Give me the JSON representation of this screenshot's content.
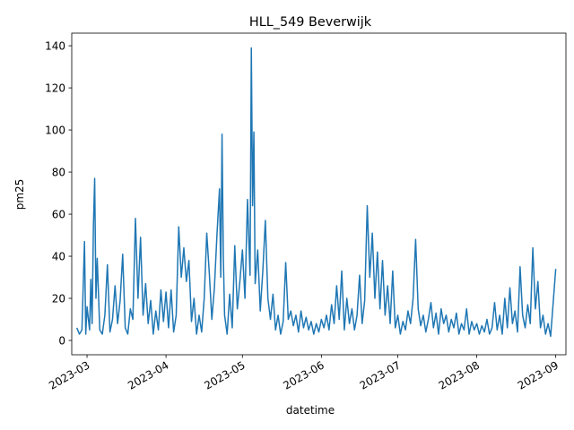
{
  "chart_data": {
    "type": "line",
    "title": "HLL_549 Beverwijk",
    "xlabel": "datetime",
    "ylabel": "pm25",
    "xlim": [
      "2023-02-23",
      "2023-09-05"
    ],
    "ylim": [
      -6.8,
      146
    ],
    "grid": false,
    "x_ticks": [
      "2023-03",
      "2023-04",
      "2023-05",
      "2023-06",
      "2023-07",
      "2023-08",
      "2023-09"
    ],
    "y_ticks": [
      0,
      20,
      40,
      60,
      80,
      100,
      120,
      140
    ],
    "series": [
      {
        "color": "#1f77b4",
        "points": [
          [
            "2023-02-25",
            6
          ],
          [
            "2023-02-26",
            3
          ],
          [
            "2023-02-27",
            5
          ],
          [
            "2023-02-28",
            47
          ],
          [
            "2023-02-28T12",
            3
          ],
          [
            "2023-03-01",
            16
          ],
          [
            "2023-03-02",
            5
          ],
          [
            "2023-03-02T12",
            29
          ],
          [
            "2023-03-03",
            8
          ],
          [
            "2023-03-03T12",
            54
          ],
          [
            "2023-03-04",
            77
          ],
          [
            "2023-03-04T12",
            20
          ],
          [
            "2023-03-05",
            39
          ],
          [
            "2023-03-06",
            5
          ],
          [
            "2023-03-07",
            3
          ],
          [
            "2023-03-08",
            12
          ],
          [
            "2023-03-09",
            36
          ],
          [
            "2023-03-10",
            4
          ],
          [
            "2023-03-11",
            10
          ],
          [
            "2023-03-12",
            26
          ],
          [
            "2023-03-13",
            8
          ],
          [
            "2023-03-14",
            19
          ],
          [
            "2023-03-15",
            41
          ],
          [
            "2023-03-16",
            6
          ],
          [
            "2023-03-17",
            3
          ],
          [
            "2023-03-18",
            15
          ],
          [
            "2023-03-19",
            10
          ],
          [
            "2023-03-20",
            58
          ],
          [
            "2023-03-21",
            20
          ],
          [
            "2023-03-22",
            49
          ],
          [
            "2023-03-23",
            12
          ],
          [
            "2023-03-24",
            27
          ],
          [
            "2023-03-25",
            8
          ],
          [
            "2023-03-26",
            19
          ],
          [
            "2023-03-27",
            3
          ],
          [
            "2023-03-28",
            14
          ],
          [
            "2023-03-29",
            5
          ],
          [
            "2023-03-30",
            24
          ],
          [
            "2023-03-31",
            9
          ],
          [
            "2023-04-01",
            23
          ],
          [
            "2023-04-02",
            6
          ],
          [
            "2023-04-03",
            24
          ],
          [
            "2023-04-04",
            4
          ],
          [
            "2023-04-05",
            12
          ],
          [
            "2023-04-06",
            54
          ],
          [
            "2023-04-07",
            30
          ],
          [
            "2023-04-08",
            44
          ],
          [
            "2023-04-09",
            28
          ],
          [
            "2023-04-10",
            38
          ],
          [
            "2023-04-11",
            9
          ],
          [
            "2023-04-12",
            20
          ],
          [
            "2023-04-13",
            3
          ],
          [
            "2023-04-14",
            12
          ],
          [
            "2023-04-15",
            4
          ],
          [
            "2023-04-16",
            20
          ],
          [
            "2023-04-17",
            51
          ],
          [
            "2023-04-18",
            32
          ],
          [
            "2023-04-19",
            10
          ],
          [
            "2023-04-20",
            25
          ],
          [
            "2023-04-21",
            50
          ],
          [
            "2023-04-22",
            72
          ],
          [
            "2023-04-22T12",
            30
          ],
          [
            "2023-04-23",
            98
          ],
          [
            "2023-04-23T12",
            40
          ],
          [
            "2023-04-24",
            12
          ],
          [
            "2023-04-25",
            3
          ],
          [
            "2023-04-26",
            22
          ],
          [
            "2023-04-27",
            6
          ],
          [
            "2023-04-28",
            45
          ],
          [
            "2023-04-29",
            15
          ],
          [
            "2023-04-30",
            28
          ],
          [
            "2023-05-01",
            43
          ],
          [
            "2023-05-02",
            20
          ],
          [
            "2023-05-03",
            67
          ],
          [
            "2023-05-04",
            31
          ],
          [
            "2023-05-04T12",
            139
          ],
          [
            "2023-05-05",
            64
          ],
          [
            "2023-05-05T12",
            99
          ],
          [
            "2023-05-06",
            27
          ],
          [
            "2023-05-07",
            43
          ],
          [
            "2023-05-08",
            14
          ],
          [
            "2023-05-09",
            33
          ],
          [
            "2023-05-10",
            57
          ],
          [
            "2023-05-11",
            20
          ],
          [
            "2023-05-12",
            10
          ],
          [
            "2023-05-13",
            22
          ],
          [
            "2023-05-14",
            5
          ],
          [
            "2023-05-15",
            12
          ],
          [
            "2023-05-16",
            3
          ],
          [
            "2023-05-17",
            9
          ],
          [
            "2023-05-18",
            37
          ],
          [
            "2023-05-19",
            10
          ],
          [
            "2023-05-20",
            14
          ],
          [
            "2023-05-21",
            7
          ],
          [
            "2023-05-22",
            12
          ],
          [
            "2023-05-23",
            4
          ],
          [
            "2023-05-24",
            14
          ],
          [
            "2023-05-25",
            6
          ],
          [
            "2023-05-26",
            11
          ],
          [
            "2023-05-27",
            5
          ],
          [
            "2023-05-28",
            9
          ],
          [
            "2023-05-29",
            3
          ],
          [
            "2023-05-30",
            8
          ],
          [
            "2023-05-31",
            4
          ],
          [
            "2023-06-01",
            10
          ],
          [
            "2023-06-02",
            6
          ],
          [
            "2023-06-03",
            12
          ],
          [
            "2023-06-04",
            5
          ],
          [
            "2023-06-05",
            17
          ],
          [
            "2023-06-06",
            8
          ],
          [
            "2023-06-07",
            26
          ],
          [
            "2023-06-08",
            10
          ],
          [
            "2023-06-09",
            33
          ],
          [
            "2023-06-10",
            5
          ],
          [
            "2023-06-11",
            20
          ],
          [
            "2023-06-12",
            8
          ],
          [
            "2023-06-13",
            15
          ],
          [
            "2023-06-14",
            5
          ],
          [
            "2023-06-15",
            12
          ],
          [
            "2023-06-16",
            31
          ],
          [
            "2023-06-17",
            8
          ],
          [
            "2023-06-18",
            19
          ],
          [
            "2023-06-19",
            64
          ],
          [
            "2023-06-20",
            30
          ],
          [
            "2023-06-21",
            51
          ],
          [
            "2023-06-22",
            20
          ],
          [
            "2023-06-23",
            42
          ],
          [
            "2023-06-24",
            15
          ],
          [
            "2023-06-25",
            38
          ],
          [
            "2023-06-26",
            12
          ],
          [
            "2023-06-27",
            26
          ],
          [
            "2023-06-28",
            8
          ],
          [
            "2023-06-29",
            33
          ],
          [
            "2023-06-30",
            6
          ],
          [
            "2023-07-01",
            12
          ],
          [
            "2023-07-02",
            3
          ],
          [
            "2023-07-03",
            9
          ],
          [
            "2023-07-04",
            5
          ],
          [
            "2023-07-05",
            14
          ],
          [
            "2023-07-06",
            8
          ],
          [
            "2023-07-07",
            20
          ],
          [
            "2023-07-08",
            48
          ],
          [
            "2023-07-09",
            15
          ],
          [
            "2023-07-10",
            7
          ],
          [
            "2023-07-11",
            12
          ],
          [
            "2023-07-12",
            4
          ],
          [
            "2023-07-13",
            10
          ],
          [
            "2023-07-14",
            18
          ],
          [
            "2023-07-15",
            6
          ],
          [
            "2023-07-16",
            13
          ],
          [
            "2023-07-17",
            3
          ],
          [
            "2023-07-18",
            15
          ],
          [
            "2023-07-19",
            8
          ],
          [
            "2023-07-20",
            12
          ],
          [
            "2023-07-21",
            4
          ],
          [
            "2023-07-22",
            10
          ],
          [
            "2023-07-23",
            6
          ],
          [
            "2023-07-24",
            13
          ],
          [
            "2023-07-25",
            3
          ],
          [
            "2023-07-26",
            8
          ],
          [
            "2023-07-27",
            5
          ],
          [
            "2023-07-28",
            15
          ],
          [
            "2023-07-29",
            3
          ],
          [
            "2023-07-30",
            9
          ],
          [
            "2023-07-31",
            5
          ],
          [
            "2023-08-01",
            8
          ],
          [
            "2023-08-02",
            3
          ],
          [
            "2023-08-03",
            7
          ],
          [
            "2023-08-04",
            4
          ],
          [
            "2023-08-05",
            10
          ],
          [
            "2023-08-06",
            3
          ],
          [
            "2023-08-07",
            6
          ],
          [
            "2023-08-08",
            18
          ],
          [
            "2023-08-09",
            5
          ],
          [
            "2023-08-10",
            12
          ],
          [
            "2023-08-11",
            3
          ],
          [
            "2023-08-12",
            20
          ],
          [
            "2023-08-13",
            6
          ],
          [
            "2023-08-14",
            25
          ],
          [
            "2023-08-15",
            8
          ],
          [
            "2023-08-16",
            14
          ],
          [
            "2023-08-17",
            4
          ],
          [
            "2023-08-18",
            35
          ],
          [
            "2023-08-19",
            12
          ],
          [
            "2023-08-20",
            6
          ],
          [
            "2023-08-21",
            17
          ],
          [
            "2023-08-22",
            8
          ],
          [
            "2023-08-23",
            44
          ],
          [
            "2023-08-24",
            15
          ],
          [
            "2023-08-25",
            28
          ],
          [
            "2023-08-26",
            6
          ],
          [
            "2023-08-27",
            12
          ],
          [
            "2023-08-28",
            3
          ],
          [
            "2023-08-29",
            8
          ],
          [
            "2023-08-30",
            2
          ],
          [
            "2023-08-31",
            18
          ],
          [
            "2023-09-01",
            34
          ]
        ]
      }
    ]
  }
}
